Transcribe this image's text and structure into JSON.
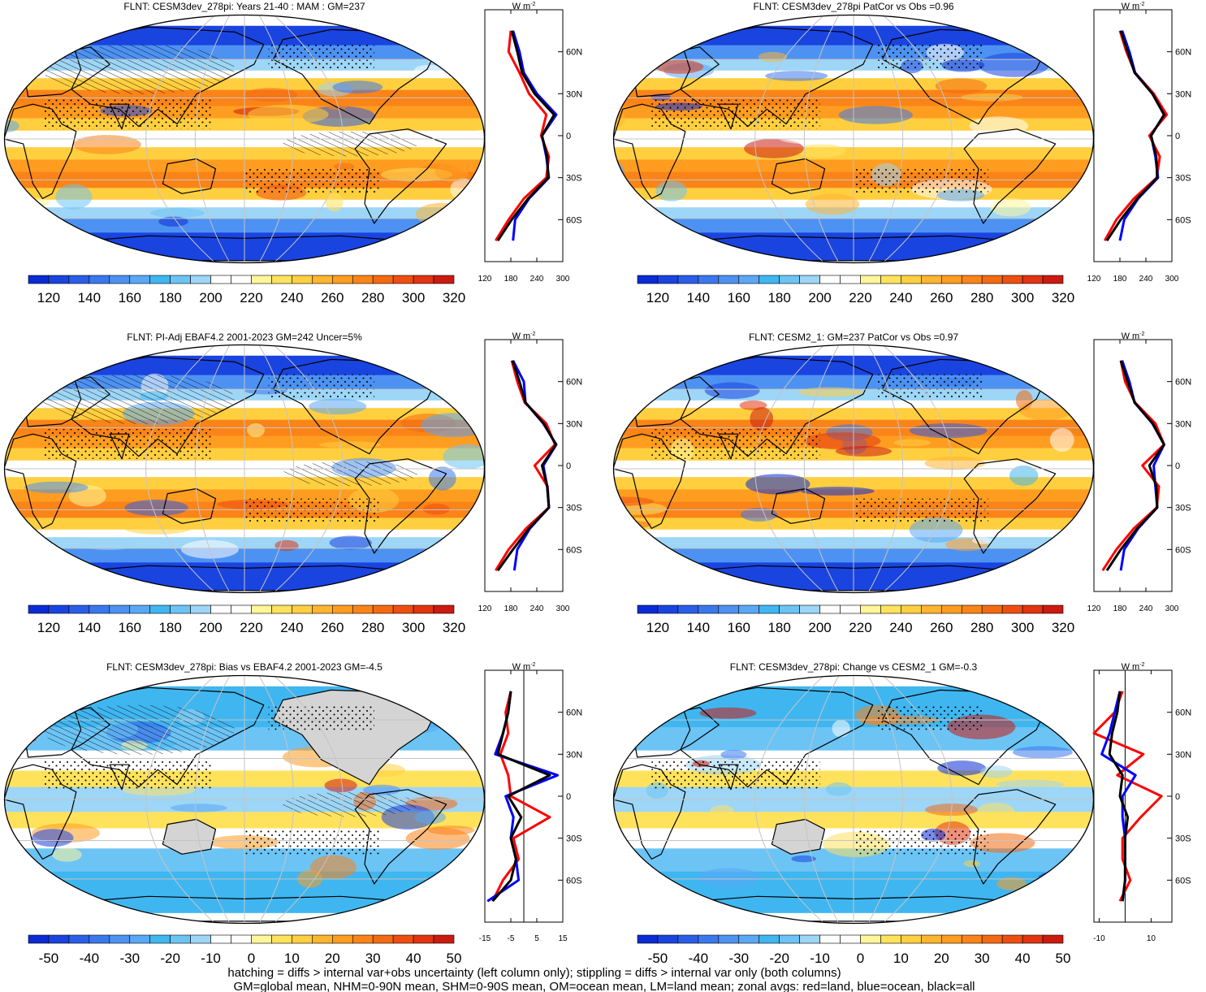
{
  "panels": [
    {
      "title": "FLNT: CESM3dev_278pi: Years 21-40 : MAM : GM=237",
      "kind": "abs",
      "hatch": true,
      "stipple": true,
      "seed": 1
    },
    {
      "title": "FLNT: CESM3dev_278pi PatCor vs Obs =0.96",
      "kind": "abs",
      "hatch": false,
      "stipple": true,
      "seed": 2
    },
    {
      "title": "FLNT: PI-Adj EBAF4.2 2001-2023 GM=242 Uncer=5%",
      "kind": "abs",
      "hatch": true,
      "stipple": true,
      "seed": 3
    },
    {
      "title": "FLNT: CESM2_1: GM=237 PatCor vs Obs =0.97",
      "kind": "abs",
      "hatch": false,
      "stipple": true,
      "seed": 4
    },
    {
      "title": "FLNT: CESM3dev_278pi: Bias vs EBAF4.2 2001-2023 GM=-4.5",
      "kind": "diff",
      "hatch": true,
      "stipple": true,
      "seed": 5
    },
    {
      "title": "FLNT: CESM3dev_278pi: Change vs CESM2_1 GM=-0.3",
      "kind": "diff",
      "hatch": false,
      "stipple": true,
      "seed": 6
    }
  ],
  "zonal_units": "W m",
  "zonal_units_sup": "-2",
  "lat_ticks": [
    "60N",
    "30N",
    "0",
    "30S",
    "60S"
  ],
  "abs_zonal_xticks": [
    "120",
    "180",
    "240",
    "300"
  ],
  "left_diff_zonal_xticks": [
    "-15",
    "-5",
    "5",
    "15"
  ],
  "right_diff_zonal_xticks": [
    "-10",
    "10"
  ],
  "abs_colorbar": {
    "labels": [
      "120",
      "140",
      "160",
      "180",
      "200",
      "220",
      "240",
      "260",
      "280",
      "300",
      "320"
    ],
    "colors": [
      "#0b2bd6",
      "#1a44e0",
      "#2b5ee8",
      "#3a78ee",
      "#4d92f2",
      "#5aa8f5",
      "#3fb6f0",
      "#6cc4f5",
      "#9dd6f6",
      "#ffffff",
      "#ffffff",
      "#fff59a",
      "#ffe25c",
      "#ffcf40",
      "#ffb52e",
      "#ff9d20",
      "#fb8418",
      "#f46a12",
      "#ee4f10",
      "#e23410",
      "#cc1a10"
    ]
  },
  "diff_colorbar": {
    "labels": [
      "-50",
      "-40",
      "-30",
      "-20",
      "-10",
      "0",
      "10",
      "20",
      "30",
      "40",
      "50"
    ],
    "colors": [
      "#0b2bd6",
      "#1a44e0",
      "#2b5ee8",
      "#3a78ee",
      "#4d92f2",
      "#5aa8f5",
      "#3fb6f0",
      "#6cc4f5",
      "#9dd6f6",
      "#ffffff",
      "#ffffff",
      "#fff59a",
      "#ffe25c",
      "#ffcf40",
      "#ffb52e",
      "#ff9d20",
      "#fb8418",
      "#f46a12",
      "#ee4f10",
      "#e23410",
      "#cc1a10"
    ]
  },
  "colors": {
    "land": "#ff0000",
    "ocean": "#0000ff",
    "all": "#000000",
    "landmask": "#d4d4d4",
    "grid": "#c4c4c4"
  },
  "footer": [
    "hatching = diffs > internal var+obs uncertainty (left column only); stippling = diffs > internal var only (both columns)",
    "GM=global mean, NHM=0-90N mean, SHM=0-90S mean, OM=ocean mean, LM=land mean; zonal avgs: red=land, blue=ocean, black=all"
  ],
  "chart_data": [
    {
      "type": "heatmap",
      "title": "FLNT: CESM3dev_278pi: Years 21-40 : MAM : GM=237",
      "units": "W m-2",
      "clim": [
        110,
        330
      ],
      "zonal": {
        "lat": [
          -75,
          -60,
          -45,
          -30,
          -15,
          0,
          15,
          30,
          45,
          60,
          75
        ],
        "land": [
          145,
          175,
          210,
          262,
          268,
          250,
          262,
          222,
          200,
          175,
          180
        ],
        "ocean": [
          185,
          190,
          222,
          268,
          262,
          252,
          285,
          240,
          210,
          200,
          185
        ],
        "all": [
          150,
          182,
          220,
          266,
          264,
          252,
          280,
          235,
          206,
          195,
          182
        ]
      }
    },
    {
      "type": "heatmap",
      "title": "FLNT: CESM3dev_278pi PatCor vs Obs =0.96",
      "units": "W m-2",
      "clim": [
        110,
        330
      ],
      "zonal": {
        "lat": [
          -75,
          -60,
          -45,
          -30,
          -15,
          0,
          15,
          30,
          45,
          60,
          75
        ],
        "land": [
          145,
          172,
          212,
          265,
          272,
          248,
          288,
          258,
          215,
          195,
          180
        ],
        "ocean": [
          180,
          190,
          222,
          268,
          262,
          252,
          282,
          255,
          215,
          202,
          185
        ],
        "all": [
          150,
          182,
          220,
          266,
          264,
          252,
          282,
          255,
          214,
          198,
          182
        ]
      }
    },
    {
      "type": "heatmap",
      "title": "FLNT: PI-Adj EBAF4.2 2001-2023 GM=242 Uncer=5%",
      "units": "W m-2",
      "clim": [
        110,
        330
      ],
      "zonal": {
        "lat": [
          -75,
          -60,
          -45,
          -30,
          -15,
          0,
          15,
          30,
          45,
          60,
          75
        ],
        "land": [
          145,
          175,
          215,
          268,
          265,
          235,
          282,
          262,
          212,
          195,
          182
        ],
        "ocean": [
          188,
          195,
          224,
          268,
          264,
          255,
          285,
          255,
          214,
          210,
          185
        ],
        "all": [
          150,
          185,
          222,
          268,
          264,
          252,
          284,
          256,
          214,
          200,
          184
        ]
      }
    },
    {
      "type": "heatmap",
      "title": "FLNT: CESM2_1: GM=237 PatCor vs Obs =0.97",
      "units": "W m-2",
      "clim": [
        110,
        330
      ],
      "zonal": {
        "lat": [
          -75,
          -60,
          -45,
          -30,
          -15,
          0,
          15,
          30,
          45,
          60,
          75
        ],
        "land": [
          140,
          172,
          212,
          265,
          270,
          232,
          282,
          262,
          215,
          192,
          182
        ],
        "ocean": [
          182,
          190,
          222,
          266,
          262,
          258,
          282,
          255,
          214,
          202,
          185
        ],
        "all": [
          150,
          182,
          220,
          266,
          264,
          248,
          282,
          256,
          214,
          198,
          182
        ]
      }
    },
    {
      "type": "heatmap",
      "title": "FLNT: CESM3dev_278pi: Bias vs EBAF4.2 2001-2023 GM=-4.5",
      "units": "W m-2",
      "clim": [
        -55,
        55
      ],
      "zonal": {
        "lat": [
          -75,
          -60,
          -45,
          -30,
          -15,
          0,
          15,
          30,
          45,
          60,
          75
        ],
        "land": [
          -12,
          -8,
          -2,
          -4,
          10,
          -5,
          -6,
          -9,
          -6,
          -7,
          -5
        ],
        "ocean": [
          -14,
          -2,
          -3,
          -5,
          -4,
          -7,
          13,
          -11,
          -8,
          -6,
          -5
        ],
        "all": [
          -12,
          -5,
          -3,
          -5,
          -1,
          -6,
          10,
          -10,
          -8,
          -6,
          -5
        ]
      }
    },
    {
      "type": "heatmap",
      "title": "FLNT: CESM3dev_278pi: Change vs CESM2_1 GM=-0.3",
      "units": "W m-2",
      "clim": [
        -55,
        55
      ],
      "zonal": {
        "lat": [
          -75,
          -60,
          -45,
          -30,
          -15,
          0,
          15,
          30,
          45,
          60,
          75
        ],
        "land": [
          -2,
          2,
          -1,
          -1,
          6,
          14,
          -3,
          7,
          -12,
          -4,
          -1
        ],
        "ocean": [
          -1,
          0,
          0,
          0,
          -1,
          -1,
          4,
          -9,
          -6,
          -4,
          -2
        ],
        "all": [
          -1,
          0,
          0,
          0,
          1,
          -2,
          -1,
          -6,
          -5,
          -3,
          -2
        ]
      }
    }
  ]
}
